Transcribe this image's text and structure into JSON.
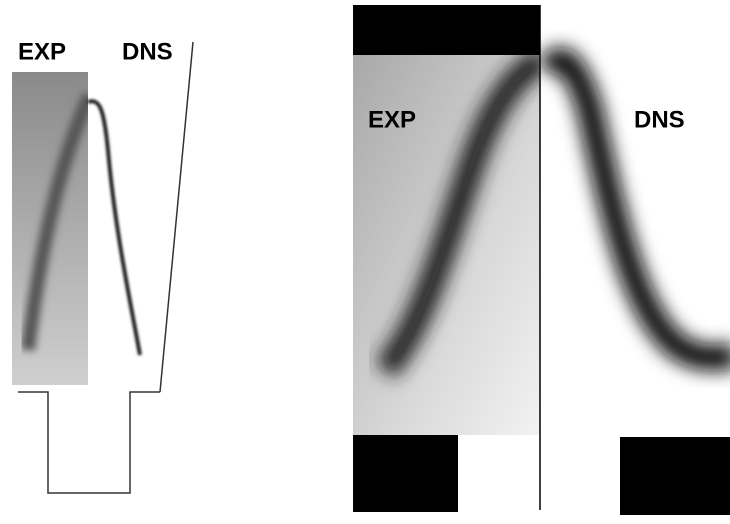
{
  "left_panel": {
    "exp_label": "EXP",
    "dns_label": "DNS"
  },
  "right_panel": {
    "exp_label": "EXP",
    "dns_label": "DNS"
  }
}
